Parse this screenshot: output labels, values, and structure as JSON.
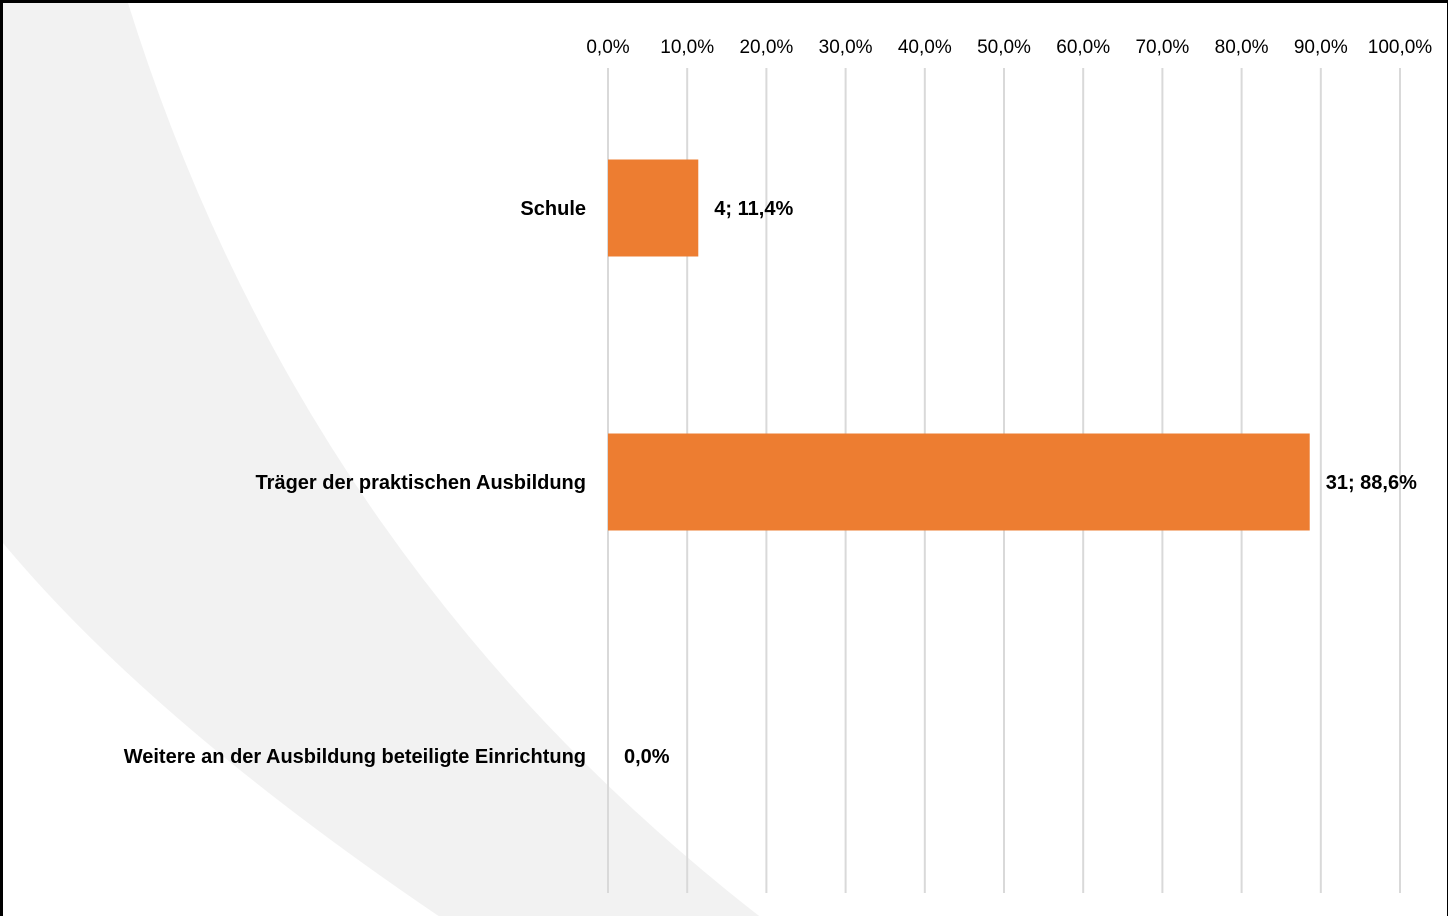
{
  "chart_data": {
    "type": "bar",
    "orientation": "horizontal",
    "categories": [
      "Schule",
      "Träger der praktischen Ausbildung",
      "Weitere an der Ausbildung beteiligte Einrichtung"
    ],
    "values": [
      11.4,
      88.6,
      0.0
    ],
    "data_labels": [
      "4; 11,4%",
      "31; 88,6%",
      "0,0%"
    ],
    "x_ticks": [
      "0,0%",
      "10,0%",
      "20,0%",
      "30,0%",
      "40,0%",
      "50,0%",
      "60,0%",
      "70,0%",
      "80,0%",
      "90,0%",
      "100,0%"
    ],
    "xlim": [
      0,
      100
    ],
    "x_axis_position": "top",
    "grid": true,
    "legend": "none",
    "bar_color": "#ED7D31",
    "grid_color": "#D9D9D9"
  }
}
